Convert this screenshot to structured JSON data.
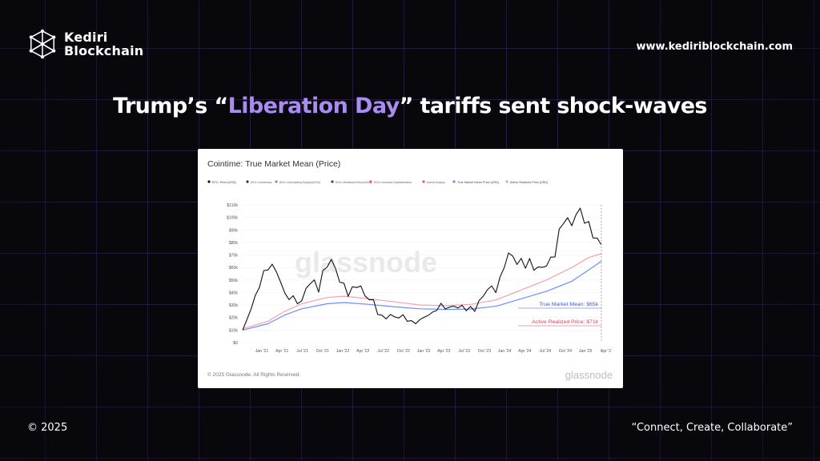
{
  "brand": {
    "line1": "Kediri",
    "line2": "Blockchain",
    "website": "www.kediriblockchain.com",
    "logo_icon": "network-polyhedron-icon"
  },
  "headline": {
    "before": "Trump’s “",
    "highlight": "Liberation Day",
    "after": "” tariffs sent shock-waves",
    "highlight_color": "#a98cf0"
  },
  "footer": {
    "copyright": "© 2025",
    "tagline": "“Connect, Create, Collaborate”"
  },
  "chart_data": {
    "type": "line",
    "title": "Cointime: True Market Mean (Price)",
    "legend": [
      {
        "label": "BTC: Price [USD]",
        "color": "#111111",
        "active": true
      },
      {
        "label": "BTC: Liveliness",
        "color": "#333333",
        "active": false
      },
      {
        "label": "BTC: Circulating Supply [BTC]",
        "color": "#6b8cff",
        "active": false
      },
      {
        "label": "BTC: Realized Price [USD]",
        "color": "#444444",
        "active": false
      },
      {
        "label": "BTC: Investor Capitalization",
        "color": "#e05a6a",
        "active": false
      },
      {
        "label": "Active Supply",
        "color": "#e05a6a",
        "active": false
      },
      {
        "label": "True Market Mean Price [USD]",
        "color": "#6b8cff",
        "active": true
      },
      {
        "label": "Active Realized Price [USD]",
        "color": "#f4a0b0",
        "active": true
      }
    ],
    "x_ticks": [
      "Jan '21",
      "Apr '21",
      "Jul '21",
      "Oct '21",
      "Jan '22",
      "Apr '22",
      "Jul '22",
      "Oct '22",
      "Jan '23",
      "Apr '23",
      "Jul '23",
      "Oct '23",
      "Jan '24",
      "Apr '24",
      "Jul '24",
      "Oct '24",
      "Jan '25",
      "Apr '2"
    ],
    "y_ticks": [
      "$0",
      "$10k",
      "$20k",
      "$30k",
      "$40k",
      "$50k",
      "$60k",
      "$70k",
      "$80k",
      "$90k",
      "$100k",
      "$110k"
    ],
    "ylim": [
      0,
      110000
    ],
    "series": [
      {
        "name": "BTC: Price [USD]",
        "color": "#111111",
        "values": [
          [
            0,
            10000
          ],
          [
            1,
            17000
          ],
          [
            2,
            29000
          ],
          [
            3,
            37000
          ],
          [
            4,
            46000
          ],
          [
            5,
            55000
          ],
          [
            6,
            58000
          ],
          [
            7,
            63000
          ],
          [
            8,
            57000
          ],
          [
            9,
            50000
          ],
          [
            10,
            37000
          ],
          [
            11,
            35000
          ],
          [
            12,
            36000
          ],
          [
            13,
            33000
          ],
          [
            14,
            34000
          ],
          [
            15,
            42000
          ],
          [
            16,
            47000
          ],
          [
            17,
            48000
          ],
          [
            18,
            43000
          ],
          [
            19,
            57000
          ],
          [
            20,
            61000
          ],
          [
            21,
            65000
          ],
          [
            22,
            58000
          ],
          [
            23,
            50000
          ],
          [
            24,
            47000
          ],
          [
            25,
            39000
          ],
          [
            26,
            42000
          ],
          [
            27,
            44000
          ],
          [
            28,
            45000
          ],
          [
            29,
            38000
          ],
          [
            30,
            36000
          ],
          [
            31,
            32000
          ],
          [
            32,
            23000
          ],
          [
            33,
            20000
          ],
          [
            34,
            21000
          ],
          [
            35,
            23000
          ],
          [
            36,
            20000
          ],
          [
            37,
            19500
          ],
          [
            38,
            20000
          ],
          [
            39,
            19500
          ],
          [
            40,
            17000
          ],
          [
            41,
            16500
          ],
          [
            42,
            16800
          ],
          [
            43,
            19000
          ],
          [
            44,
            23000
          ],
          [
            45,
            24000
          ],
          [
            46,
            28000
          ],
          [
            47,
            29000
          ],
          [
            48,
            27000
          ],
          [
            49,
            27500
          ],
          [
            50,
            30000
          ],
          [
            51,
            29500
          ],
          [
            52,
            28000
          ],
          [
            53,
            26000
          ],
          [
            54,
            26500
          ],
          [
            55,
            27000
          ],
          [
            56,
            34000
          ],
          [
            57,
            37000
          ],
          [
            58,
            42000
          ],
          [
            59,
            43000
          ],
          [
            60,
            42000
          ],
          [
            61,
            52000
          ],
          [
            62,
            62000
          ],
          [
            63,
            70000
          ],
          [
            64,
            68000
          ],
          [
            65,
            63000
          ],
          [
            66,
            67000
          ],
          [
            67,
            62000
          ],
          [
            68,
            65000
          ],
          [
            69,
            58000
          ],
          [
            70,
            59000
          ],
          [
            71,
            61000
          ],
          [
            72,
            63000
          ],
          [
            73,
            67000
          ],
          [
            74,
            69000
          ],
          [
            75,
            88000
          ],
          [
            76,
            97000
          ],
          [
            77,
            100000
          ],
          [
            78,
            94000
          ],
          [
            79,
            102000
          ],
          [
            80,
            105000
          ],
          [
            81,
            97000
          ],
          [
            82,
            96000
          ],
          [
            83,
            86000
          ],
          [
            84,
            82000
          ],
          [
            85,
            78000
          ]
        ]
      },
      {
        "name": "True Market Mean Price [USD]",
        "color": "#6b8cff",
        "values": [
          [
            0,
            10000
          ],
          [
            6,
            15000
          ],
          [
            10,
            22000
          ],
          [
            14,
            27000
          ],
          [
            20,
            31000
          ],
          [
            24,
            32000
          ],
          [
            30,
            30500
          ],
          [
            36,
            28500
          ],
          [
            42,
            27000
          ],
          [
            48,
            26500
          ],
          [
            54,
            26800
          ],
          [
            60,
            29000
          ],
          [
            66,
            35000
          ],
          [
            72,
            41000
          ],
          [
            78,
            49000
          ],
          [
            82,
            58000
          ],
          [
            85,
            65000
          ]
        ]
      },
      {
        "name": "Active Realized Price [USD]",
        "color": "#f4a0b0",
        "values": [
          [
            0,
            11000
          ],
          [
            6,
            17000
          ],
          [
            10,
            25000
          ],
          [
            14,
            31000
          ],
          [
            20,
            36000
          ],
          [
            24,
            37000
          ],
          [
            30,
            35000
          ],
          [
            36,
            32500
          ],
          [
            42,
            30000
          ],
          [
            48,
            29500
          ],
          [
            54,
            30500
          ],
          [
            60,
            34000
          ],
          [
            66,
            42000
          ],
          [
            72,
            50000
          ],
          [
            78,
            60000
          ],
          [
            82,
            68000
          ],
          [
            85,
            71000
          ]
        ]
      }
    ],
    "annotations": [
      {
        "text": "True Market Mean: $65k",
        "color": "#3b5ee0"
      },
      {
        "text": "Active Realized Price: $71k",
        "color": "#e0405a"
      }
    ],
    "watermark": "glassnode",
    "copyright": "© 2025 Glassnode. All Rights Reserved.",
    "brand_mark": "glassnode"
  }
}
